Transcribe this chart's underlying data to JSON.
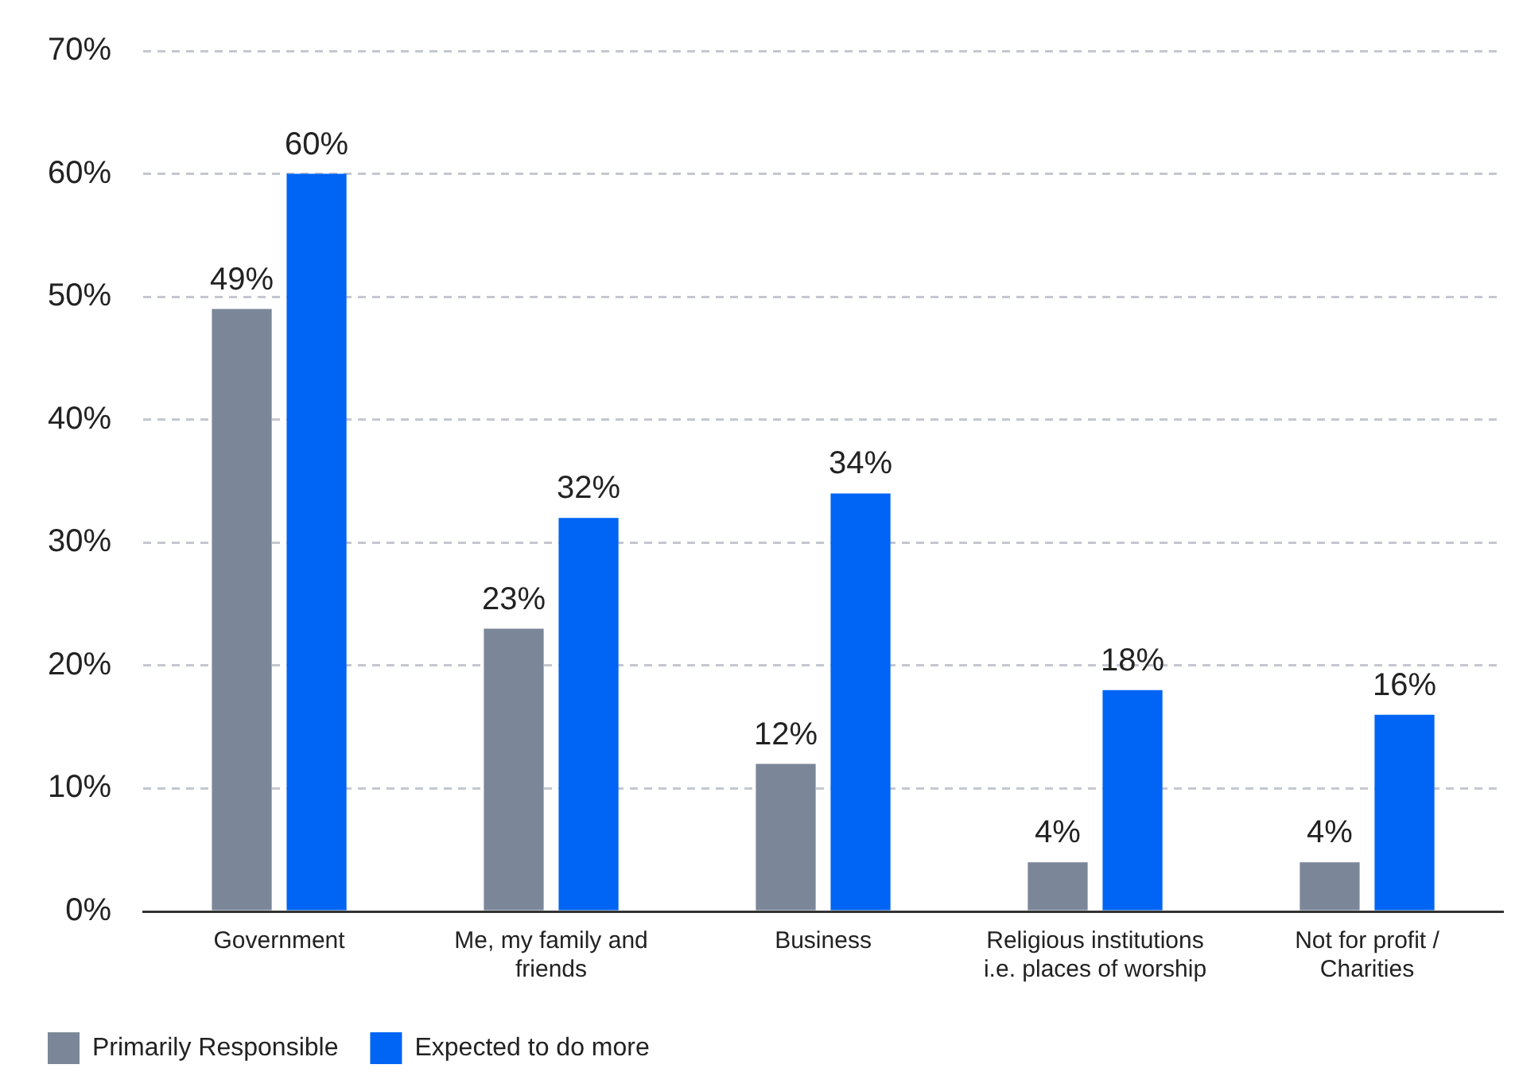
{
  "chart_data": {
    "type": "bar",
    "categories": [
      "Government",
      "Me, my family and friends",
      "Business",
      "Religious institutions i.e. places of worship",
      "Not for profit / Charities"
    ],
    "series": [
      {
        "name": "Primarily Responsible",
        "color": "#7b8799",
        "values": [
          49,
          23,
          12,
          4,
          4
        ],
        "value_labels": [
          "49%",
          "23%",
          "12%",
          "4%",
          "4%"
        ]
      },
      {
        "name": "Expected to do more",
        "color": "#0064f5",
        "values": [
          60,
          32,
          34,
          18,
          16
        ],
        "value_labels": [
          "60%",
          "32%",
          "34%",
          "18%",
          "16%"
        ]
      }
    ],
    "ylim": [
      0,
      70
    ],
    "yticks": [
      {
        "value": 0,
        "label": "0%"
      },
      {
        "value": 10,
        "label": "10%"
      },
      {
        "value": 20,
        "label": "20%"
      },
      {
        "value": 30,
        "label": "30%"
      },
      {
        "value": 40,
        "label": "40%"
      },
      {
        "value": 50,
        "label": "50%"
      },
      {
        "value": 60,
        "label": "60%"
      },
      {
        "value": 70,
        "label": "70%"
      }
    ],
    "grid": "y",
    "legend": "bottom left"
  }
}
